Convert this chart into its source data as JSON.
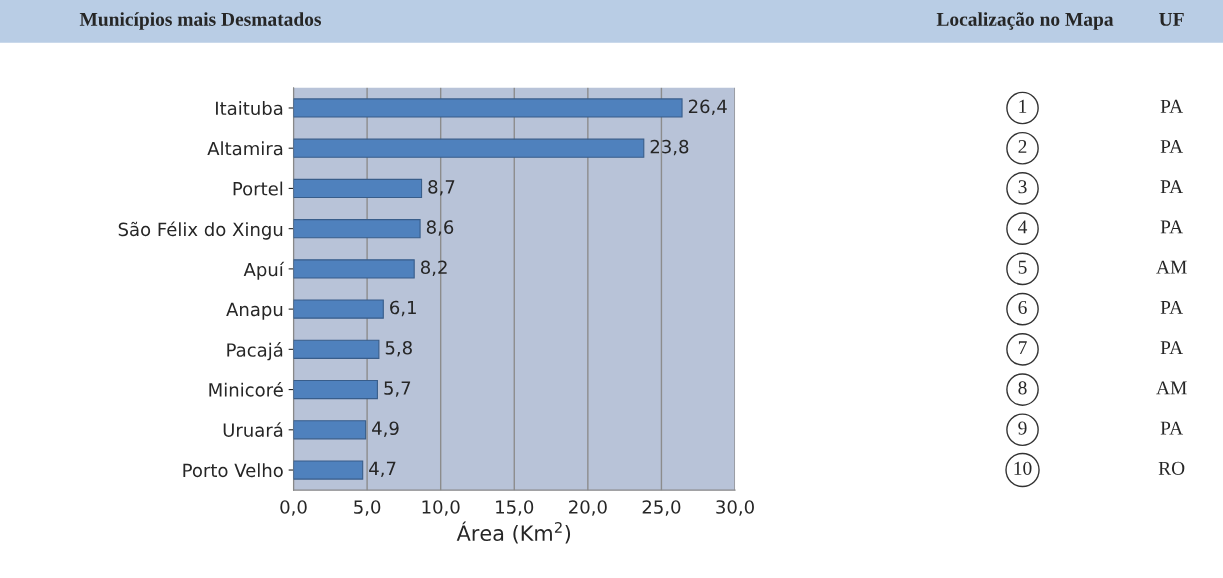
{
  "chart_data": [
    {
      "type": "bar",
      "orientation": "horizontal",
      "title": "Municípios mais Desmatados",
      "categories": [
        "Itaituba",
        "Altamira",
        "Portel",
        "São Félix do Xingu",
        "Apuí",
        "Anapu",
        "Pacajá",
        "Minicoré",
        "Uruará",
        "Porto Velho"
      ],
      "y2_categories": [
        "1",
        "2",
        "3",
        "4",
        "5",
        "6",
        "7",
        "8",
        "9",
        "10"
      ],
      "y2label": "Localização no Mapa",
      "marker": "circle",
      "values": [
        26.4,
        23.8,
        8.7,
        8.6,
        8.2,
        6.1,
        5.8,
        5.7,
        4.9,
        4.7
      ],
      "value_labels": [
        "26,4",
        "23,8",
        "8,7",
        "8,6",
        "8,2",
        "6,1",
        "5,8",
        "5,7",
        "4,9",
        "4,7"
      ],
      "color": "#4f81bd",
      "xlabel": "Área (Km$^{2}$)",
      "xlim": [
        0,
        30
      ],
      "xticks": [
        {
          "value": 0,
          "label": "0,0"
        },
        {
          "value": 5,
          "label": "5,0"
        },
        {
          "value": 10,
          "label": "10,0"
        },
        {
          "value": 15,
          "label": "15,0"
        },
        {
          "value": 20,
          "label": "20,0"
        },
        {
          "value": 25,
          "label": "25,0"
        },
        {
          "value": 30,
          "label": "30,0"
        }
      ],
      "grid": "x"
    },
    {
      "type": "other",
      "title": "UF",
      "annotations": [
        "PA",
        "PA",
        "PA",
        "PA",
        "AM",
        "PA",
        "PA",
        "AM",
        "PA",
        "RO"
      ]
    }
  ]
}
